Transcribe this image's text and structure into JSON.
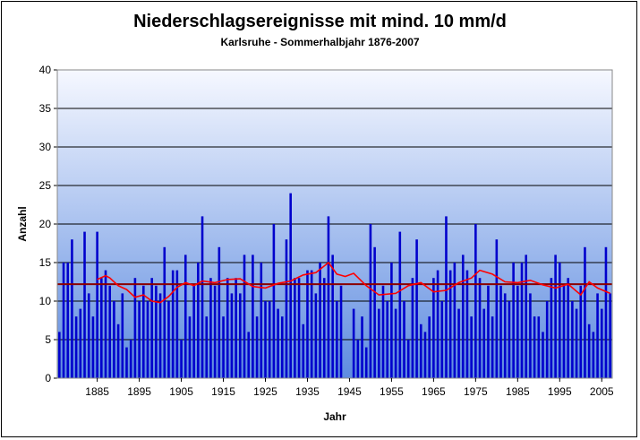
{
  "chart_data": {
    "type": "bar",
    "title": "Niederschlagsereignisse mit mind. 10 mm/d",
    "subtitle": "Karlsruhe   - Sommerhalbjahr 1876-2007",
    "xlabel": "Jahr",
    "ylabel": "Anzahl",
    "ylim": [
      0,
      40
    ],
    "yticks": [
      "0",
      "5",
      "10",
      "15",
      "20",
      "25",
      "30",
      "35",
      "40"
    ],
    "xticks": [
      "1885",
      "1895",
      "1905",
      "1915",
      "1925",
      "1935",
      "1945",
      "1955",
      "1965",
      "1975",
      "1985",
      "1995",
      "2005"
    ],
    "x_start": 1876,
    "x_end": 2007,
    "grid": true,
    "legend": "none",
    "colors": {
      "bars": "#0000cc",
      "moving_average": "#ff0000",
      "mean": "#8b0000",
      "gridline": "#000000"
    },
    "values": [
      6,
      15,
      15,
      18,
      8,
      9,
      19,
      11,
      8,
      19,
      13,
      14,
      12,
      10,
      7,
      11,
      4,
      5,
      13,
      10,
      12,
      10,
      13,
      12,
      11,
      17,
      10,
      14,
      14,
      5,
      16,
      8,
      12,
      15,
      21,
      8,
      13,
      12,
      17,
      8,
      13,
      11,
      13,
      11,
      16,
      6,
      16,
      8,
      15,
      10,
      10,
      20,
      9,
      8,
      18,
      24,
      13,
      13,
      7,
      14,
      14,
      11,
      15,
      13,
      21,
      16,
      10,
      12,
      0,
      0,
      9,
      5,
      8,
      4,
      20,
      17,
      9,
      12,
      10,
      15,
      9,
      19,
      10,
      5,
      13,
      18,
      7,
      6,
      8,
      13,
      14,
      10,
      21,
      14,
      15,
      9,
      16,
      14,
      8,
      20,
      13,
      9,
      12,
      8,
      18,
      12,
      11,
      10,
      15,
      12,
      15,
      16,
      11,
      8,
      8,
      6,
      10,
      13,
      16,
      15,
      12,
      13,
      10,
      9,
      12,
      17,
      7,
      6,
      11,
      9,
      17,
      11
    ],
    "mean_value": 12.2,
    "moving_average": {
      "x": [
        1885,
        1887,
        1888,
        1890,
        1892,
        1894,
        1896,
        1898,
        1900,
        1902,
        1904,
        1906,
        1908,
        1910,
        1913,
        1916,
        1919,
        1922,
        1925,
        1928,
        1931,
        1934,
        1937,
        1940,
        1942,
        1944,
        1946,
        1949,
        1952,
        1956,
        1959,
        1962,
        1965,
        1968,
        1971,
        1974,
        1976,
        1979,
        1982,
        1985,
        1988,
        1991,
        1994,
        1997,
        2000,
        2002,
        2004,
        2007
      ],
      "y": [
        12.8,
        13.3,
        13.0,
        12.0,
        11.5,
        10.5,
        10.8,
        10.0,
        9.8,
        10.6,
        11.8,
        12.4,
        12.0,
        12.6,
        12.4,
        12.8,
        12.9,
        11.9,
        11.7,
        12.3,
        12.6,
        13.4,
        13.7,
        15.0,
        13.5,
        13.2,
        13.6,
        12.0,
        10.8,
        11.0,
        12.0,
        12.4,
        11.2,
        11.4,
        12.4,
        13.0,
        14.0,
        13.5,
        12.5,
        12.4,
        12.7,
        12.1,
        11.7,
        12.2,
        10.8,
        12.5,
        11.7,
        11.0
      ]
    }
  }
}
